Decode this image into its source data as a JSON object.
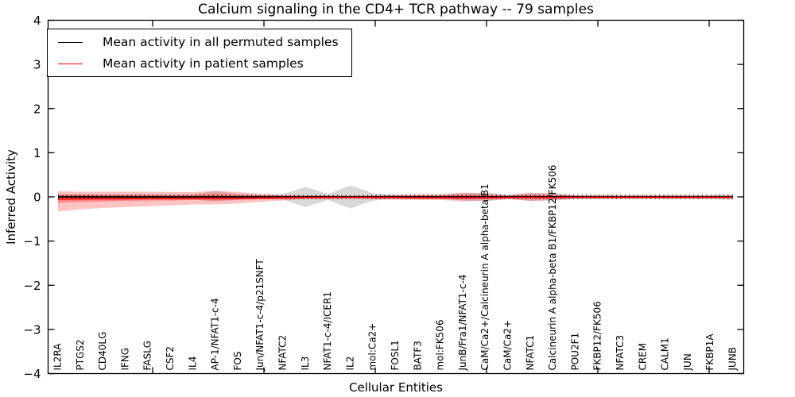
{
  "chart_data": {
    "type": "line",
    "title": "Calcium signaling in the CD4+ TCR pathway -- 79 samples",
    "xlabel": "Cellular Entities",
    "ylabel": "Inferred Activity",
    "ylim": [
      -4,
      4
    ],
    "yticks": [
      4,
      3,
      2,
      1,
      0,
      -1,
      -2,
      -3,
      -4
    ],
    "ytick_labels": [
      "4",
      "3",
      "2",
      "1",
      "0",
      "−1",
      "−2",
      "−3",
      "−4"
    ],
    "grid": false,
    "legend_position": "upper left",
    "categories": [
      "IL2RA",
      "PTGS2",
      "CD40LG",
      "IFNG",
      "FASLG",
      "CSF2",
      "IL4",
      "AP-1/NFAT1-c-4",
      "FOS",
      "Jun/NFAT1-c-4/p21SNFT",
      "NFATC2",
      "IL3",
      "NFAT1-c-4/ICER1",
      "IL2",
      "mol:Ca2+",
      "FOSL1",
      "BATF3",
      "mol:FK506",
      "JunB/Fra1/NFAT1-c-4",
      "CaM/Ca2+/Calcineurin A alpha-beta B1",
      "CaM/Ca2+",
      "NFATC1",
      "Calcineurin A alpha-beta B1/FKBP12/FK506",
      "POU2F1",
      "FKBP12/FK506",
      "NFATC3",
      "CREM",
      "CALM1",
      "JUN",
      "FKBP1A",
      "JUNB"
    ],
    "series": [
      {
        "name": "Mean activity in all permuted samples",
        "color": "#000000",
        "values": [
          0,
          0,
          0,
          0,
          0,
          0,
          0,
          0,
          0,
          0,
          0,
          0,
          0,
          0,
          0,
          0,
          0,
          0,
          0,
          0,
          0,
          0,
          0,
          0,
          0,
          0,
          0,
          0,
          0,
          0,
          0
        ]
      },
      {
        "name": "Mean activity in patient samples",
        "color": "#ff0000",
        "values": [
          -0.05,
          -0.045,
          -0.04,
          -0.04,
          -0.035,
          -0.035,
          -0.03,
          -0.03,
          -0.03,
          -0.025,
          -0.02,
          -0.015,
          -0.015,
          -0.01,
          -0.015,
          -0.015,
          -0.02,
          -0.02,
          -0.02,
          -0.02,
          -0.015,
          -0.015,
          -0.015,
          -0.01,
          -0.01,
          -0.01,
          -0.01,
          -0.01,
          -0.01,
          -0.01,
          -0.01
        ]
      }
    ],
    "bands": [
      {
        "name": "permuted-samples-range",
        "color": "#999999",
        "opacity": 0.38,
        "upper": [
          0.06,
          0.06,
          0.05,
          0.05,
          0.05,
          0.05,
          0.06,
          0.13,
          0.07,
          0.05,
          0.06,
          0.23,
          0.07,
          0.26,
          0.08,
          0.05,
          0.05,
          0.05,
          0.08,
          0.1,
          0.05,
          0.09,
          0.08,
          0.05,
          0.05,
          0.05,
          0.05,
          0.05,
          0.05,
          0.05,
          0.07
        ],
        "lower": [
          -0.06,
          -0.06,
          -0.05,
          -0.05,
          -0.05,
          -0.05,
          -0.06,
          -0.1,
          -0.07,
          -0.05,
          -0.06,
          -0.23,
          -0.07,
          -0.26,
          -0.08,
          -0.05,
          -0.05,
          -0.05,
          -0.08,
          -0.1,
          -0.05,
          -0.09,
          -0.08,
          -0.05,
          -0.05,
          -0.05,
          -0.05,
          -0.05,
          -0.05,
          -0.05,
          -0.07
        ]
      },
      {
        "name": "patient-samples-range-outer",
        "color": "#ff0000",
        "opacity": 0.24,
        "upper": [
          0.13,
          0.12,
          0.12,
          0.12,
          0.12,
          0.11,
          0.11,
          0.14,
          0.11,
          0.07,
          0.05,
          0.04,
          0.04,
          0.03,
          0.04,
          0.05,
          0.06,
          0.06,
          0.1,
          0.08,
          0.04,
          0.09,
          0.07,
          0.04,
          0.03,
          0.03,
          0.03,
          0.03,
          0.03,
          0.03,
          0.03
        ],
        "lower": [
          -0.33,
          -0.28,
          -0.25,
          -0.23,
          -0.21,
          -0.19,
          -0.17,
          -0.17,
          -0.15,
          -0.11,
          -0.08,
          -0.05,
          -0.05,
          -0.04,
          -0.05,
          -0.06,
          -0.07,
          -0.07,
          -0.1,
          -0.08,
          -0.05,
          -0.09,
          -0.07,
          -0.04,
          -0.04,
          -0.04,
          -0.04,
          -0.04,
          -0.04,
          -0.04,
          -0.04
        ]
      },
      {
        "name": "patient-samples-range-inner",
        "color": "#ff0000",
        "opacity": 0.32,
        "upper": [
          0.05,
          0.05,
          0.05,
          0.05,
          0.05,
          0.04,
          0.04,
          0.06,
          0.04,
          0.03,
          0.02,
          0.02,
          0.02,
          0.015,
          0.02,
          0.02,
          0.025,
          0.025,
          0.05,
          0.04,
          0.02,
          0.045,
          0.035,
          0.02,
          0.015,
          0.015,
          0.015,
          0.015,
          0.015,
          0.015,
          0.015
        ],
        "lower": [
          -0.13,
          -0.11,
          -0.1,
          -0.09,
          -0.08,
          -0.08,
          -0.07,
          -0.08,
          -0.06,
          -0.05,
          -0.04,
          -0.03,
          -0.03,
          -0.025,
          -0.03,
          -0.03,
          -0.035,
          -0.035,
          -0.05,
          -0.04,
          -0.03,
          -0.045,
          -0.035,
          -0.02,
          -0.02,
          -0.02,
          -0.02,
          -0.02,
          -0.02,
          -0.02,
          -0.02
        ]
      }
    ]
  }
}
